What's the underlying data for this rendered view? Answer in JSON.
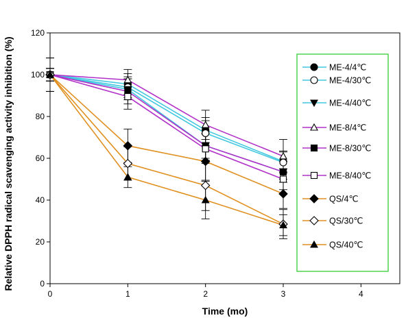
{
  "chart_data": {
    "type": "line",
    "xlabel": "Time (mo)",
    "ylabel": "Relative DPPH radical scavenging activity inhibition (%)",
    "xlim": [
      0,
      4.5
    ],
    "ylim": [
      0,
      120
    ],
    "xticks": [
      0,
      1,
      2,
      3,
      4
    ],
    "yticks": [
      0,
      20,
      40,
      60,
      80,
      100,
      120
    ],
    "grid": false,
    "legend_position": "right",
    "legend_border_color": "#33cc33",
    "x": [
      0,
      1,
      2,
      3
    ],
    "series": [
      {
        "name": "ME-4/4℃",
        "color": "#40c8e0",
        "marker": "circle-filled",
        "values": [
          100,
          95.5,
          73.5,
          58.5
        ],
        "errors": [
          3,
          5,
          6,
          5
        ]
      },
      {
        "name": "ME-4/30℃",
        "color": "#40c8e0",
        "marker": "circle-open",
        "values": [
          100,
          94,
          72,
          58
        ],
        "errors": [
          3,
          5,
          6,
          5
        ]
      },
      {
        "name": "ME-4/40℃",
        "color": "#40c8e0",
        "marker": "triangle-down",
        "values": [
          100,
          93,
          66,
          53.5
        ],
        "errors": [
          3,
          5,
          6,
          5
        ]
      },
      {
        "name": "ME-8/4℃",
        "color": "#b030c8",
        "marker": "triangle-up-open",
        "values": [
          100,
          97.5,
          76,
          61
        ],
        "errors": [
          3,
          5,
          7,
          8
        ]
      },
      {
        "name": "ME-8/30℃",
        "color": "#b030c8",
        "marker": "square-filled",
        "values": [
          100,
          92,
          66,
          53.5
        ],
        "errors": [
          3,
          6,
          7,
          5
        ]
      },
      {
        "name": "ME-8/40℃",
        "color": "#b030c8",
        "marker": "square-open",
        "values": [
          100,
          89.5,
          64.5,
          50
        ],
        "errors": [
          3,
          6,
          7,
          5
        ]
      },
      {
        "name": "QS/4℃",
        "color": "#e09020",
        "marker": "diamond-filled",
        "values": [
          100,
          66,
          58.5,
          43
        ],
        "errors": [
          8,
          8,
          9,
          7
        ]
      },
      {
        "name": "QS/30℃",
        "color": "#e09020",
        "marker": "diamond-open",
        "values": [
          100,
          57.5,
          47,
          28.5
        ],
        "errors": [
          8,
          8,
          12,
          7
        ]
      },
      {
        "name": "QS/40℃",
        "color": "#e09020",
        "marker": "triangle-up-filled",
        "values": [
          100,
          51,
          40,
          28
        ],
        "errors": [
          8,
          5,
          9,
          5
        ]
      }
    ]
  }
}
